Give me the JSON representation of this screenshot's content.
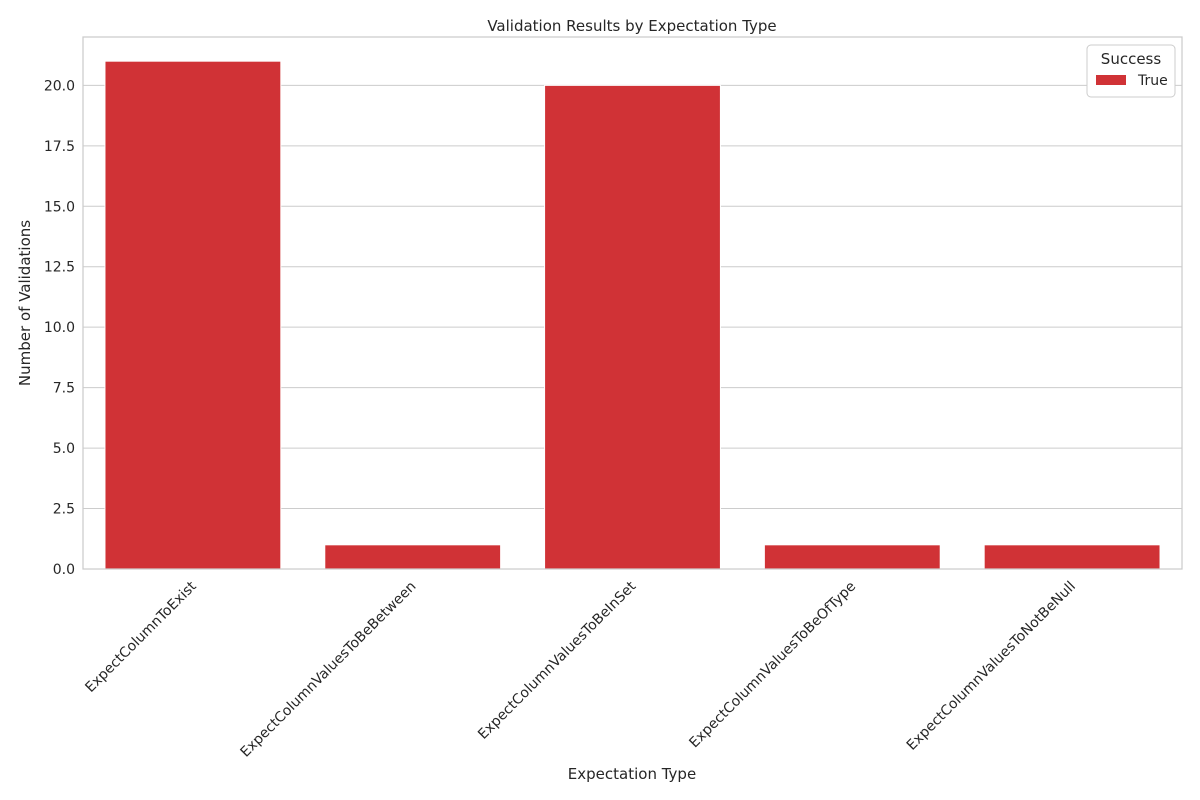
{
  "chart_data": {
    "type": "bar",
    "title": "Validation Results by Expectation Type",
    "xlabel": "Expectation Type",
    "ylabel": "Number of Validations",
    "categories": [
      "ExpectColumnToExist",
      "ExpectColumnValuesToBeBetween",
      "ExpectColumnValuesToBeInSet",
      "ExpectColumnValuesToBeOfType",
      "ExpectColumnValuesToNotBeNull"
    ],
    "series": [
      {
        "name": "True",
        "values": [
          21,
          1,
          20,
          1,
          1
        ],
        "color": "#d03236"
      }
    ],
    "ylim": [
      0,
      22
    ],
    "yticks": [
      "0.0",
      "2.5",
      "5.0",
      "7.5",
      "10.0",
      "12.5",
      "15.0",
      "17.5",
      "20.0"
    ],
    "grid": true,
    "legend": {
      "title": "Success",
      "placement": "top-right"
    }
  }
}
